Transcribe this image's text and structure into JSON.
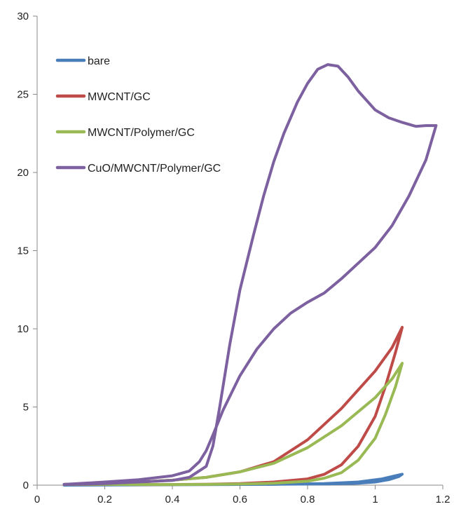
{
  "chart_data": {
    "type": "line",
    "title": "",
    "xlabel": "",
    "ylabel": "",
    "xlim": [
      0,
      1.2
    ],
    "ylim": [
      0,
      30
    ],
    "xticks": [
      0,
      0.2,
      0.4,
      0.6,
      0.8,
      1,
      1.2
    ],
    "xtick_labels": [
      "0",
      "0.2",
      "0.4",
      "0.6",
      "0.8",
      "1",
      "1.2"
    ],
    "yticks": [
      0,
      5,
      10,
      15,
      20,
      25,
      30
    ],
    "ytick_labels": [
      "0",
      "5",
      "10",
      "15",
      "20",
      "25",
      "30"
    ],
    "grid": false,
    "legend_position": "top-left",
    "series": [
      {
        "name": "bare",
        "color": "#4a7ebb",
        "points": [
          [
            0.08,
            0.0
          ],
          [
            0.3,
            0.02
          ],
          [
            0.5,
            0.03
          ],
          [
            0.7,
            0.06
          ],
          [
            0.85,
            0.08
          ],
          [
            0.95,
            0.12
          ],
          [
            1.0,
            0.2
          ],
          [
            1.04,
            0.35
          ],
          [
            1.07,
            0.55
          ],
          [
            1.08,
            0.7
          ],
          [
            1.06,
            0.6
          ],
          [
            1.02,
            0.4
          ],
          [
            0.95,
            0.2
          ],
          [
            0.85,
            0.1
          ],
          [
            0.7,
            0.05
          ],
          [
            0.5,
            0.03
          ],
          [
            0.3,
            0.02
          ],
          [
            0.08,
            0.02
          ]
        ]
      },
      {
        "name": "MWCNT/GC",
        "color": "#be4b48",
        "points": [
          [
            0.08,
            0.05
          ],
          [
            0.2,
            0.12
          ],
          [
            0.3,
            0.2
          ],
          [
            0.4,
            0.32
          ],
          [
            0.5,
            0.5
          ],
          [
            0.6,
            0.85
          ],
          [
            0.7,
            1.5
          ],
          [
            0.8,
            2.9
          ],
          [
            0.9,
            4.9
          ],
          [
            1.0,
            7.3
          ],
          [
            1.05,
            8.8
          ],
          [
            1.08,
            10.1
          ],
          [
            1.06,
            8.5
          ],
          [
            1.03,
            6.3
          ],
          [
            1.0,
            4.4
          ],
          [
            0.95,
            2.5
          ],
          [
            0.9,
            1.3
          ],
          [
            0.85,
            0.7
          ],
          [
            0.8,
            0.4
          ],
          [
            0.7,
            0.2
          ],
          [
            0.6,
            0.1
          ],
          [
            0.5,
            0.06
          ],
          [
            0.4,
            0.04
          ],
          [
            0.3,
            0.04
          ],
          [
            0.2,
            0.05
          ],
          [
            0.08,
            0.05
          ]
        ]
      },
      {
        "name": "MWCNT/Polymer/GC",
        "color": "#98b954",
        "points": [
          [
            0.08,
            0.05
          ],
          [
            0.2,
            0.12
          ],
          [
            0.3,
            0.2
          ],
          [
            0.4,
            0.32
          ],
          [
            0.5,
            0.5
          ],
          [
            0.6,
            0.85
          ],
          [
            0.7,
            1.4
          ],
          [
            0.8,
            2.4
          ],
          [
            0.9,
            3.8
          ],
          [
            1.0,
            5.6
          ],
          [
            1.05,
            6.8
          ],
          [
            1.08,
            7.8
          ],
          [
            1.06,
            6.3
          ],
          [
            1.03,
            4.5
          ],
          [
            1.0,
            3.0
          ],
          [
            0.95,
            1.6
          ],
          [
            0.9,
            0.8
          ],
          [
            0.85,
            0.45
          ],
          [
            0.8,
            0.25
          ],
          [
            0.7,
            0.12
          ],
          [
            0.6,
            0.07
          ],
          [
            0.5,
            0.05
          ],
          [
            0.4,
            0.04
          ],
          [
            0.3,
            0.04
          ],
          [
            0.2,
            0.05
          ],
          [
            0.08,
            0.05
          ]
        ]
      },
      {
        "name": "CuO/MWCNT/Polymer/GC",
        "color": "#7d60a0",
        "points": [
          [
            0.08,
            0.05
          ],
          [
            0.2,
            0.2
          ],
          [
            0.3,
            0.35
          ],
          [
            0.4,
            0.6
          ],
          [
            0.45,
            0.9
          ],
          [
            0.48,
            1.5
          ],
          [
            0.5,
            2.2
          ],
          [
            0.52,
            3.2
          ],
          [
            0.55,
            4.8
          ],
          [
            0.6,
            7.0
          ],
          [
            0.65,
            8.7
          ],
          [
            0.7,
            10.0
          ],
          [
            0.75,
            11.0
          ],
          [
            0.8,
            11.7
          ],
          [
            0.85,
            12.3
          ],
          [
            0.9,
            13.2
          ],
          [
            0.95,
            14.2
          ],
          [
            1.0,
            15.2
          ],
          [
            1.05,
            16.6
          ],
          [
            1.1,
            18.5
          ],
          [
            1.15,
            20.8
          ],
          [
            1.18,
            23.0
          ],
          [
            1.15,
            23.0
          ],
          [
            1.12,
            22.95
          ],
          [
            1.08,
            23.2
          ],
          [
            1.04,
            23.5
          ],
          [
            1.0,
            24.0
          ],
          [
            0.95,
            25.2
          ],
          [
            0.92,
            26.1
          ],
          [
            0.89,
            26.8
          ],
          [
            0.86,
            26.9
          ],
          [
            0.83,
            26.6
          ],
          [
            0.8,
            25.7
          ],
          [
            0.77,
            24.5
          ],
          [
            0.73,
            22.5
          ],
          [
            0.7,
            20.7
          ],
          [
            0.67,
            18.5
          ],
          [
            0.64,
            16.0
          ],
          [
            0.6,
            12.5
          ],
          [
            0.57,
            9.0
          ],
          [
            0.54,
            5.0
          ],
          [
            0.52,
            2.5
          ],
          [
            0.5,
            1.2
          ],
          [
            0.45,
            0.5
          ],
          [
            0.4,
            0.3
          ],
          [
            0.3,
            0.2
          ],
          [
            0.2,
            0.1
          ],
          [
            0.08,
            0.05
          ]
        ]
      }
    ]
  }
}
